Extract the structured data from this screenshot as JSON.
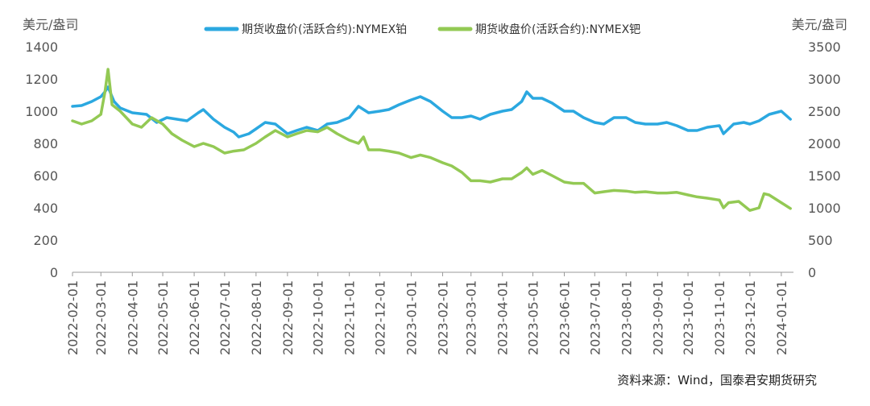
{
  "chart_data": {
    "type": "line",
    "left_axis_unit": "美元/盎司",
    "right_axis_unit": "美元/盎司",
    "left_ylim": [
      0,
      1400
    ],
    "left_yticks": [
      0,
      200,
      400,
      600,
      800,
      1000,
      1200,
      1400
    ],
    "right_ylim": [
      0,
      3500
    ],
    "right_yticks": [
      0,
      500,
      1000,
      1500,
      2000,
      2500,
      3000,
      3500
    ],
    "x_ticks": [
      "2022-02-01",
      "2022-03-01",
      "2022-04-01",
      "2022-05-01",
      "2022-06-01",
      "2022-07-01",
      "2022-08-01",
      "2022-09-01",
      "2022-10-01",
      "2022-11-01",
      "2022-12-01",
      "2023-01-01",
      "2023-02-01",
      "2023-03-01",
      "2023-04-01",
      "2023-05-01",
      "2023-06-01",
      "2023-07-01",
      "2023-08-01",
      "2023-09-01",
      "2023-10-01",
      "2023-11-01",
      "2023-12-01",
      "2024-01-01"
    ],
    "legend_position": "top-center",
    "grid": false,
    "series": [
      {
        "name": "期货收盘价(活跃合约):NYMEX铂",
        "axis": "left",
        "color": "#2BA8E0",
        "points": [
          [
            "2022-02-01",
            1030
          ],
          [
            "2022-02-10",
            1035
          ],
          [
            "2022-02-20",
            1060
          ],
          [
            "2022-03-01",
            1090
          ],
          [
            "2022-03-05",
            1120
          ],
          [
            "2022-03-08",
            1150
          ],
          [
            "2022-03-14",
            1060
          ],
          [
            "2022-03-20",
            1020
          ],
          [
            "2022-04-01",
            990
          ],
          [
            "2022-04-15",
            980
          ],
          [
            "2022-04-25",
            930
          ],
          [
            "2022-05-05",
            960
          ],
          [
            "2022-05-15",
            950
          ],
          [
            "2022-05-25",
            940
          ],
          [
            "2022-06-05",
            990
          ],
          [
            "2022-06-10",
            1010
          ],
          [
            "2022-06-20",
            950
          ],
          [
            "2022-07-01",
            900
          ],
          [
            "2022-07-10",
            870
          ],
          [
            "2022-07-15",
            840
          ],
          [
            "2022-07-25",
            860
          ],
          [
            "2022-08-01",
            890
          ],
          [
            "2022-08-10",
            930
          ],
          [
            "2022-08-20",
            920
          ],
          [
            "2022-09-01",
            860
          ],
          [
            "2022-09-10",
            880
          ],
          [
            "2022-09-20",
            900
          ],
          [
            "2022-10-01",
            880
          ],
          [
            "2022-10-10",
            920
          ],
          [
            "2022-10-20",
            930
          ],
          [
            "2022-11-01",
            960
          ],
          [
            "2022-11-10",
            1030
          ],
          [
            "2022-11-20",
            990
          ],
          [
            "2022-12-01",
            1000
          ],
          [
            "2022-12-10",
            1010
          ],
          [
            "2022-12-20",
            1040
          ],
          [
            "2023-01-01",
            1070
          ],
          [
            "2023-01-10",
            1090
          ],
          [
            "2023-01-20",
            1060
          ],
          [
            "2023-02-01",
            1000
          ],
          [
            "2023-02-10",
            960
          ],
          [
            "2023-02-20",
            960
          ],
          [
            "2023-03-01",
            970
          ],
          [
            "2023-03-10",
            950
          ],
          [
            "2023-03-20",
            980
          ],
          [
            "2023-04-01",
            1000
          ],
          [
            "2023-04-10",
            1010
          ],
          [
            "2023-04-20",
            1060
          ],
          [
            "2023-04-25",
            1120
          ],
          [
            "2023-05-01",
            1080
          ],
          [
            "2023-05-10",
            1080
          ],
          [
            "2023-05-20",
            1050
          ],
          [
            "2023-06-01",
            1000
          ],
          [
            "2023-06-10",
            1000
          ],
          [
            "2023-06-20",
            960
          ],
          [
            "2023-07-01",
            930
          ],
          [
            "2023-07-10",
            920
          ],
          [
            "2023-07-20",
            960
          ],
          [
            "2023-08-01",
            960
          ],
          [
            "2023-08-10",
            930
          ],
          [
            "2023-08-20",
            920
          ],
          [
            "2023-09-01",
            920
          ],
          [
            "2023-09-10",
            930
          ],
          [
            "2023-09-20",
            910
          ],
          [
            "2023-10-01",
            880
          ],
          [
            "2023-10-10",
            880
          ],
          [
            "2023-10-20",
            900
          ],
          [
            "2023-11-01",
            910
          ],
          [
            "2023-11-05",
            860
          ],
          [
            "2023-11-15",
            920
          ],
          [
            "2023-11-25",
            930
          ],
          [
            "2023-12-01",
            920
          ],
          [
            "2023-12-10",
            940
          ],
          [
            "2023-12-20",
            980
          ],
          [
            "2024-01-01",
            1000
          ],
          [
            "2024-01-10",
            950
          ]
        ]
      },
      {
        "name": "期货收盘价(活跃合约):NYMEX钯",
        "axis": "right",
        "color": "#93C954",
        "points": [
          [
            "2022-02-01",
            2350
          ],
          [
            "2022-02-10",
            2300
          ],
          [
            "2022-02-20",
            2350
          ],
          [
            "2022-03-01",
            2450
          ],
          [
            "2022-03-05",
            2800
          ],
          [
            "2022-03-08",
            3150
          ],
          [
            "2022-03-12",
            2600
          ],
          [
            "2022-03-20",
            2500
          ],
          [
            "2022-04-01",
            2300
          ],
          [
            "2022-04-10",
            2250
          ],
          [
            "2022-04-20",
            2400
          ],
          [
            "2022-05-01",
            2300
          ],
          [
            "2022-05-10",
            2150
          ],
          [
            "2022-05-20",
            2050
          ],
          [
            "2022-06-01",
            1950
          ],
          [
            "2022-06-10",
            2000
          ],
          [
            "2022-06-20",
            1950
          ],
          [
            "2022-07-01",
            1850
          ],
          [
            "2022-07-10",
            1880
          ],
          [
            "2022-07-20",
            1900
          ],
          [
            "2022-08-01",
            2000
          ],
          [
            "2022-08-10",
            2100
          ],
          [
            "2022-08-20",
            2200
          ],
          [
            "2022-09-01",
            2100
          ],
          [
            "2022-09-10",
            2150
          ],
          [
            "2022-09-20",
            2200
          ],
          [
            "2022-10-01",
            2180
          ],
          [
            "2022-10-10",
            2250
          ],
          [
            "2022-10-20",
            2150
          ],
          [
            "2022-11-01",
            2050
          ],
          [
            "2022-11-10",
            2000
          ],
          [
            "2022-11-15",
            2100
          ],
          [
            "2022-11-20",
            1900
          ],
          [
            "2022-12-01",
            1900
          ],
          [
            "2022-12-10",
            1880
          ],
          [
            "2022-12-20",
            1850
          ],
          [
            "2023-01-01",
            1780
          ],
          [
            "2023-01-10",
            1820
          ],
          [
            "2023-01-20",
            1780
          ],
          [
            "2023-02-01",
            1700
          ],
          [
            "2023-02-10",
            1650
          ],
          [
            "2023-02-20",
            1550
          ],
          [
            "2023-03-01",
            1420
          ],
          [
            "2023-03-10",
            1420
          ],
          [
            "2023-03-20",
            1400
          ],
          [
            "2023-04-01",
            1450
          ],
          [
            "2023-04-10",
            1450
          ],
          [
            "2023-04-20",
            1550
          ],
          [
            "2023-04-25",
            1620
          ],
          [
            "2023-05-01",
            1520
          ],
          [
            "2023-05-10",
            1580
          ],
          [
            "2023-05-20",
            1500
          ],
          [
            "2023-06-01",
            1400
          ],
          [
            "2023-06-10",
            1380
          ],
          [
            "2023-06-20",
            1380
          ],
          [
            "2023-07-01",
            1230
          ],
          [
            "2023-07-10",
            1250
          ],
          [
            "2023-07-20",
            1270
          ],
          [
            "2023-08-01",
            1260
          ],
          [
            "2023-08-10",
            1240
          ],
          [
            "2023-08-20",
            1250
          ],
          [
            "2023-09-01",
            1230
          ],
          [
            "2023-09-10",
            1230
          ],
          [
            "2023-09-20",
            1240
          ],
          [
            "2023-10-01",
            1200
          ],
          [
            "2023-10-10",
            1170
          ],
          [
            "2023-10-20",
            1150
          ],
          [
            "2023-11-01",
            1120
          ],
          [
            "2023-11-05",
            1000
          ],
          [
            "2023-11-10",
            1080
          ],
          [
            "2023-11-20",
            1100
          ],
          [
            "2023-12-01",
            960
          ],
          [
            "2023-12-10",
            1000
          ],
          [
            "2023-12-15",
            1220
          ],
          [
            "2023-12-20",
            1200
          ],
          [
            "2024-01-01",
            1080
          ],
          [
            "2024-01-10",
            990
          ]
        ]
      }
    ]
  },
  "source": "资料来源：Wind，国泰君安期货研究"
}
